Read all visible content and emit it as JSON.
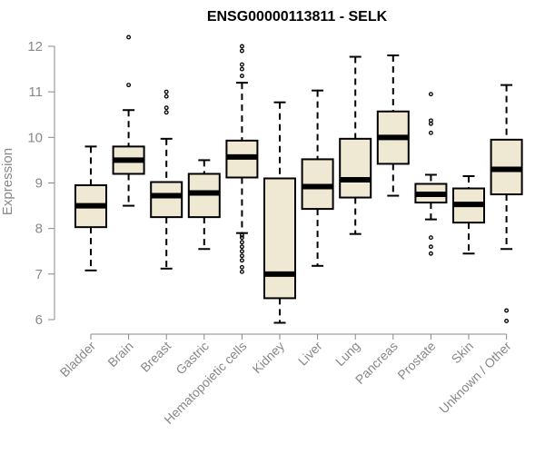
{
  "chart_data": {
    "type": "boxplot",
    "title": "ENSG00000113811 - SELK",
    "xlabel": "",
    "ylabel": "Expression",
    "ylim": [
      5.9,
      12.3
    ],
    "yticks": [
      6,
      7,
      8,
      9,
      10,
      11,
      12
    ],
    "grid": false,
    "categories": [
      "Bladder",
      "Brain",
      "Breast",
      "Gastric",
      "Hematopoietic cells",
      "Kidney",
      "Liver",
      "Lung",
      "Pancreas",
      "Prostate",
      "Skin",
      "Unknown / Other"
    ],
    "boxes": [
      {
        "name": "Bladder",
        "whisker_low": 7.08,
        "q1": 8.03,
        "median": 8.5,
        "q3": 8.95,
        "whisker_high": 9.8,
        "outliers": []
      },
      {
        "name": "Brain",
        "whisker_low": 8.5,
        "q1": 9.2,
        "median": 9.5,
        "q3": 9.8,
        "whisker_high": 10.6,
        "outliers": [
          11.15,
          12.2
        ]
      },
      {
        "name": "Breast",
        "whisker_low": 7.12,
        "q1": 8.25,
        "median": 8.72,
        "q3": 9.02,
        "whisker_high": 9.97,
        "outliers": [
          10.55,
          10.65,
          10.9,
          11.0
        ]
      },
      {
        "name": "Gastric",
        "whisker_low": 7.55,
        "q1": 8.25,
        "median": 8.78,
        "q3": 9.2,
        "whisker_high": 9.5,
        "outliers": []
      },
      {
        "name": "Hematopoietic cells",
        "whisker_low": 7.9,
        "q1": 9.12,
        "median": 9.57,
        "q3": 9.93,
        "whisker_high": 11.2,
        "outliers": [
          7.05,
          7.15,
          7.3,
          7.4,
          7.5,
          7.6,
          7.7,
          7.8,
          7.85,
          11.35,
          11.5,
          11.6,
          11.9,
          12.0
        ]
      },
      {
        "name": "Kidney",
        "whisker_low": 5.93,
        "q1": 6.47,
        "median": 7.0,
        "q3": 9.1,
        "whisker_high": 10.77,
        "outliers": []
      },
      {
        "name": "Liver",
        "whisker_low": 7.18,
        "q1": 8.43,
        "median": 8.92,
        "q3": 9.52,
        "whisker_high": 11.03,
        "outliers": []
      },
      {
        "name": "Lung",
        "whisker_low": 7.88,
        "q1": 8.68,
        "median": 9.07,
        "q3": 9.97,
        "whisker_high": 11.77,
        "outliers": []
      },
      {
        "name": "Pancreas",
        "whisker_low": 8.72,
        "q1": 9.42,
        "median": 10.0,
        "q3": 10.57,
        "whisker_high": 11.8,
        "outliers": []
      },
      {
        "name": "Prostate",
        "whisker_low": 8.2,
        "q1": 8.57,
        "median": 8.75,
        "q3": 8.98,
        "whisker_high": 9.18,
        "outliers": [
          7.45,
          7.6,
          7.8,
          10.1,
          10.3,
          10.37,
          10.95
        ]
      },
      {
        "name": "Skin",
        "whisker_low": 7.45,
        "q1": 8.13,
        "median": 8.53,
        "q3": 8.88,
        "whisker_high": 9.15,
        "outliers": []
      },
      {
        "name": "Unknown / Other",
        "whisker_low": 7.55,
        "q1": 8.75,
        "median": 9.3,
        "q3": 9.95,
        "whisker_high": 11.15,
        "outliers": [
          5.97,
          6.2
        ]
      }
    ],
    "colors": {
      "box_fill": "#efe8d2",
      "box_stroke": "#000000",
      "median": "#000000",
      "axis": "#888888",
      "text": "#888888",
      "title": "#000000"
    }
  }
}
